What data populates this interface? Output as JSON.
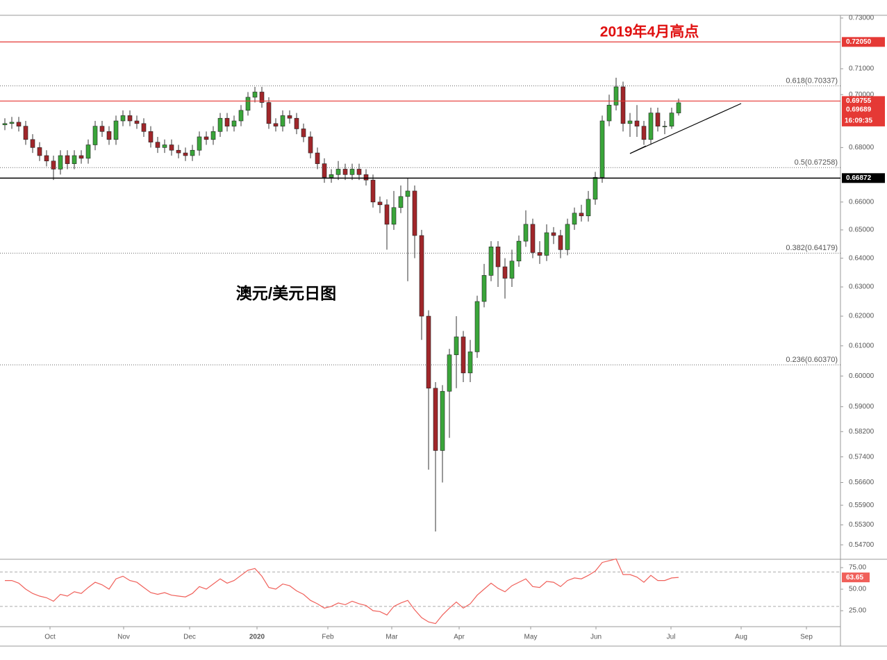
{
  "chart_data": {
    "type": "candlestick",
    "title": "澳元/美元日图",
    "annotation": "2019年4月高点",
    "log": true,
    "up_color": "#3aa53a",
    "down_color": "#a0262a",
    "xlim": [
      -0.7,
      120.3
    ],
    "xticks": [
      {
        "value": 6.5,
        "label": "Oct"
      },
      {
        "value": 17.1,
        "label": "Nov"
      },
      {
        "value": 26.6,
        "label": "Dec"
      },
      {
        "value": 36.3,
        "label": "2020"
      },
      {
        "value": 46.5,
        "label": "Feb"
      },
      {
        "value": 55.7,
        "label": "Mar"
      },
      {
        "value": 65.4,
        "label": "Apr"
      },
      {
        "value": 75.7,
        "label": "May"
      },
      {
        "value": 85.1,
        "label": "Jun"
      },
      {
        "value": 95.9,
        "label": "Jul"
      },
      {
        "value": 106.0,
        "label": "Aug"
      },
      {
        "value": 115.4,
        "label": "Sep"
      }
    ],
    "ylim": [
      0.5431,
      0.7311
    ],
    "yticks": [
      {
        "value": 0.73,
        "label": "0.73000"
      },
      {
        "value": 0.71,
        "label": "0.71000"
      },
      {
        "value": 0.7,
        "label": "0.70000"
      },
      {
        "value": 0.68,
        "label": "0.68000"
      },
      {
        "value": 0.66,
        "label": "0.66000"
      },
      {
        "value": 0.65,
        "label": "0.65000"
      },
      {
        "value": 0.64,
        "label": "0.64000"
      },
      {
        "value": 0.63,
        "label": "0.63000"
      },
      {
        "value": 0.62,
        "label": "0.62000"
      },
      {
        "value": 0.61,
        "label": "0.61000"
      },
      {
        "value": 0.6,
        "label": "0.60000"
      },
      {
        "value": 0.59,
        "label": "0.59000"
      },
      {
        "value": 0.582,
        "label": "0.58200"
      },
      {
        "value": 0.574,
        "label": "0.57400"
      },
      {
        "value": 0.566,
        "label": "0.56600"
      },
      {
        "value": 0.559,
        "label": "0.55900"
      },
      {
        "value": 0.553,
        "label": "0.55300"
      },
      {
        "value": 0.547,
        "label": "0.54700"
      }
    ],
    "price_lines": [
      {
        "value": 0.7205,
        "label": "0.72050",
        "color": "#e53935"
      },
      {
        "value": 0.69755,
        "label": "0.69755",
        "color": "#e53935"
      },
      {
        "value": 0.66872,
        "label": "0.66872",
        "color": "#000000"
      }
    ],
    "last_price": {
      "value": 0.69689,
      "label": "0.69689",
      "color": "#e53935"
    },
    "countdown": "16:09:35",
    "fib_levels": [
      {
        "value": 0.70337,
        "label": "0.618(0.70337)"
      },
      {
        "value": 0.67258,
        "label": "0.5(0.67258)"
      },
      {
        "value": 0.64179,
        "label": "0.382(0.64179)"
      },
      {
        "value": 0.6037,
        "label": "0.236(0.60370)"
      }
    ],
    "x": [
      0,
      1,
      2,
      3,
      4,
      5,
      6,
      7,
      8,
      9,
      10,
      11,
      12,
      13,
      14,
      15,
      16,
      17,
      18,
      19,
      20,
      21,
      22,
      23,
      24,
      25,
      26,
      27,
      28,
      29,
      30,
      31,
      32,
      33,
      34,
      35,
      36,
      37,
      38,
      39,
      40,
      41,
      42,
      43,
      44,
      45,
      46,
      47,
      48,
      49,
      50,
      51,
      52,
      53,
      54,
      55,
      56,
      57,
      58,
      59,
      60,
      61,
      62,
      63,
      64,
      65,
      66,
      67,
      68,
      69,
      70,
      71,
      72,
      73,
      74,
      75,
      76,
      77,
      78,
      79,
      80,
      81,
      82,
      83,
      84,
      85,
      86,
      87,
      88,
      89,
      90,
      91,
      92,
      93,
      94,
      95,
      96,
      97
    ],
    "open": [
      0.6885,
      0.689,
      0.6895,
      0.688,
      0.683,
      0.68,
      0.677,
      0.675,
      0.672,
      0.677,
      0.674,
      0.677,
      0.676,
      0.681,
      0.688,
      0.686,
      0.683,
      0.69,
      0.692,
      0.69,
      0.689,
      0.686,
      0.682,
      0.68,
      0.681,
      0.679,
      0.678,
      0.677,
      0.679,
      0.684,
      0.683,
      0.686,
      0.691,
      0.688,
      0.69,
      0.694,
      0.699,
      0.701,
      0.697,
      0.689,
      0.688,
      0.692,
      0.691,
      0.687,
      0.684,
      0.678,
      0.674,
      0.669,
      0.67,
      0.672,
      0.67,
      0.672,
      0.67,
      0.668,
      0.66,
      0.659,
      0.652,
      0.658,
      0.662,
      0.664,
      0.648,
      0.62,
      0.596,
      0.576,
      0.595,
      0.607,
      0.613,
      0.601,
      0.608,
      0.625,
      0.634,
      0.644,
      0.637,
      0.633,
      0.639,
      0.646,
      0.652,
      0.642,
      0.641,
      0.649,
      0.648,
      0.643,
      0.652,
      0.656,
      0.655,
      0.661,
      0.669,
      0.69,
      0.696,
      0.703,
      0.689,
      0.69,
      0.688,
      0.683,
      0.693,
      0.688,
      0.688,
      0.693
    ],
    "high": [
      0.691,
      0.6915,
      0.6915,
      0.69,
      0.685,
      0.682,
      0.679,
      0.677,
      0.679,
      0.679,
      0.679,
      0.679,
      0.683,
      0.69,
      0.69,
      0.688,
      0.692,
      0.694,
      0.694,
      0.692,
      0.691,
      0.688,
      0.684,
      0.683,
      0.683,
      0.681,
      0.68,
      0.681,
      0.686,
      0.686,
      0.688,
      0.693,
      0.693,
      0.692,
      0.696,
      0.701,
      0.703,
      0.703,
      0.699,
      0.691,
      0.694,
      0.694,
      0.693,
      0.689,
      0.686,
      0.68,
      0.676,
      0.672,
      0.675,
      0.674,
      0.674,
      0.674,
      0.672,
      0.67,
      0.662,
      0.661,
      0.664,
      0.666,
      0.6687,
      0.666,
      0.65,
      0.622,
      0.598,
      0.597,
      0.609,
      0.62,
      0.615,
      0.612,
      0.627,
      0.638,
      0.646,
      0.646,
      0.64,
      0.643,
      0.648,
      0.657,
      0.654,
      0.646,
      0.652,
      0.651,
      0.65,
      0.654,
      0.658,
      0.659,
      0.664,
      0.671,
      0.692,
      0.7,
      0.7065,
      0.705,
      0.693,
      0.696,
      0.69,
      0.695,
      0.695,
      0.69,
      0.695,
      0.6985
    ],
    "low": [
      0.6865,
      0.687,
      0.686,
      0.681,
      0.678,
      0.675,
      0.673,
      0.668,
      0.67,
      0.672,
      0.672,
      0.674,
      0.674,
      0.679,
      0.684,
      0.681,
      0.681,
      0.688,
      0.688,
      0.687,
      0.684,
      0.68,
      0.678,
      0.678,
      0.677,
      0.676,
      0.675,
      0.675,
      0.677,
      0.681,
      0.681,
      0.684,
      0.686,
      0.686,
      0.688,
      0.692,
      0.697,
      0.695,
      0.687,
      0.686,
      0.686,
      0.689,
      0.685,
      0.682,
      0.676,
      0.672,
      0.667,
      0.667,
      0.668,
      0.668,
      0.668,
      0.668,
      0.666,
      0.658,
      0.656,
      0.643,
      0.65,
      0.656,
      0.632,
      0.64,
      0.612,
      0.57,
      0.551,
      0.566,
      0.58,
      0.596,
      0.598,
      0.598,
      0.606,
      0.623,
      0.632,
      0.63,
      0.626,
      0.63,
      0.637,
      0.644,
      0.64,
      0.638,
      0.639,
      0.645,
      0.64,
      0.641,
      0.65,
      0.653,
      0.653,
      0.659,
      0.667,
      0.688,
      0.694,
      0.686,
      0.684,
      0.684,
      0.681,
      0.681,
      0.686,
      0.685,
      0.687,
      0.692
    ],
    "close": [
      0.689,
      0.6895,
      0.688,
      0.683,
      0.68,
      0.677,
      0.675,
      0.672,
      0.677,
      0.674,
      0.677,
      0.676,
      0.681,
      0.688,
      0.686,
      0.683,
      0.69,
      0.692,
      0.69,
      0.689,
      0.686,
      0.682,
      0.68,
      0.681,
      0.679,
      0.678,
      0.677,
      0.679,
      0.684,
      0.683,
      0.686,
      0.691,
      0.688,
      0.69,
      0.694,
      0.699,
      0.701,
      0.697,
      0.689,
      0.688,
      0.692,
      0.691,
      0.687,
      0.684,
      0.678,
      0.674,
      0.669,
      0.67,
      0.672,
      0.67,
      0.672,
      0.67,
      0.668,
      0.66,
      0.659,
      0.652,
      0.658,
      0.662,
      0.664,
      0.648,
      0.62,
      0.596,
      0.576,
      0.595,
      0.607,
      0.613,
      0.601,
      0.608,
      0.625,
      0.634,
      0.644,
      0.637,
      0.633,
      0.639,
      0.646,
      0.652,
      0.642,
      0.641,
      0.649,
      0.648,
      0.643,
      0.652,
      0.656,
      0.655,
      0.661,
      0.669,
      0.69,
      0.696,
      0.703,
      0.689,
      0.69,
      0.688,
      0.683,
      0.693,
      0.688,
      0.688,
      0.693,
      0.6969
    ],
    "rsi": {
      "color": "#f0605a",
      "ylim": [
        8.1,
        83.9
      ],
      "yticks": [
        {
          "value": 75,
          "label": "75.00"
        },
        {
          "value": 50,
          "label": "50.00"
        },
        {
          "value": 25,
          "label": "25.00"
        }
      ],
      "levels": [
        70,
        30
      ],
      "last_label": "63.65",
      "values": [
        60,
        60,
        57,
        50,
        45,
        42,
        40,
        36,
        44,
        42,
        47,
        45,
        52,
        58,
        55,
        50,
        62,
        65,
        60,
        58,
        52,
        46,
        44,
        46,
        43,
        42,
        41,
        45,
        53,
        50,
        56,
        62,
        57,
        60,
        66,
        72,
        74,
        65,
        52,
        50,
        56,
        54,
        48,
        44,
        37,
        33,
        28,
        30,
        34,
        32,
        36,
        33,
        31,
        25,
        24,
        20,
        30,
        34,
        37,
        26,
        17,
        12,
        10,
        20,
        28,
        35,
        28,
        33,
        43,
        50,
        57,
        51,
        47,
        54,
        58,
        62,
        53,
        52,
        59,
        58,
        53,
        60,
        63,
        62,
        66,
        71,
        81,
        83,
        85,
        67,
        67,
        64,
        58,
        66,
        60,
        60,
        63,
        63.65
      ]
    }
  }
}
